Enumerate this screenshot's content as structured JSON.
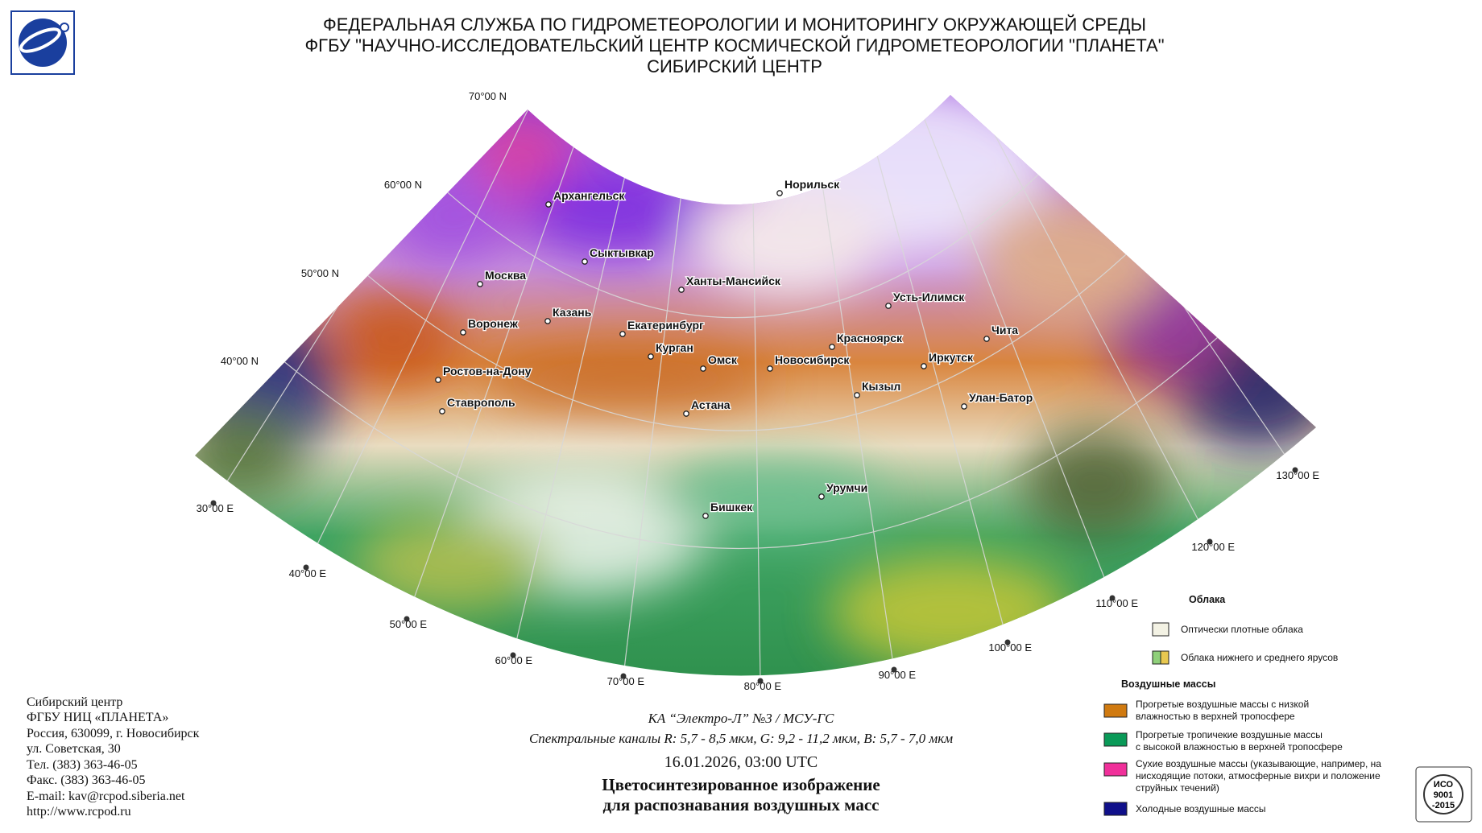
{
  "header": {
    "titles": [
      "ФЕДЕРАЛЬНАЯ СЛУЖБА ПО ГИДРОМЕТЕОРОЛОГИИ И МОНИТОРИНГУ ОКРУЖАЮЩЕЙ СРЕДЫ",
      "ФГБУ \"НАУЧНО-ИССЛЕДОВАТЕЛЬСКИЙ ЦЕНТР КОСМИЧЕСКОЙ ГИДРОМЕТЕОРОЛОГИИ \"ПЛАНЕТА\"",
      "СИБИРСКИЙ ЦЕНТР"
    ]
  },
  "map": {
    "lat_labels": [
      "70°00 N",
      "60°00 N",
      "50°00 N",
      "40°00 N"
    ],
    "lon_labels": [
      "30°00 E",
      "40°00 E",
      "50°00 E",
      "60°00 E",
      "70°00 E",
      "80°00 E",
      "90°00 E",
      "100°00 E",
      "110°00 E",
      "120°00 E",
      "130°00 E"
    ],
    "cities": [
      "Архангельск",
      "Норильск",
      "Сыктывкар",
      "Москва",
      "Ханты-Мансийск",
      "Казань",
      "Воронеж",
      "Екатеринбург",
      "Усть-Илимск",
      "Чита",
      "Красноярск",
      "Курган",
      "Омск",
      "Новосибирск",
      "Иркутск",
      "Ростов-на-Дону",
      "Кызыл",
      "Ставрополь",
      "Улан-Батор",
      "Астана",
      "Урумчи",
      "Бишкек"
    ]
  },
  "legend": {
    "clouds_title": "Облака",
    "clouds": [
      [
        "Оптически плотные облака"
      ],
      [
        "Облака нижнего и среднего ярусов"
      ]
    ],
    "air_title": "Воздушные массы",
    "air": [
      [
        "Прогретые воздушные массы с низкой",
        "влажностью в верхней тропосфере"
      ],
      [
        "Прогретые тропичекие воздушные массы",
        "с высокой влажностью в верхней тропосфере"
      ],
      [
        "Сухие воздушные массы (указывающие, например, на",
        "нисходящие потоки, атмосферные вихри и положение",
        "струйных течений)"
      ],
      [
        "Холодные воздушные массы"
      ]
    ]
  },
  "contact": [
    "Сибирский центр",
    "ФГБУ НИЦ «ПЛАНЕТА»",
    "Россия, 630099, г. Новосибирск",
    "ул. Советская, 30",
    "Тел. (383) 363-46-05",
    "Факс. (383) 363-46-05",
    "E-mail: kav@rcpod.siberia.net",
    "http://www.rcpod.ru"
  ],
  "caption": {
    "satellite": "КА “Электро-Л” №3 / МСУ-ГС",
    "channels": "Спектральные каналы R: 5,7 - 8,5 мкм, G: 9,2 - 11,2 мкм, B: 5,7 - 7,0 мкм",
    "datetime": "16.01.2026, 03:00 UTC",
    "product": [
      "Цветосинтезированное изображение",
      "для распознавания воздушных масс"
    ]
  },
  "badge": [
    "ИСО",
    "9001",
    "-2015"
  ]
}
